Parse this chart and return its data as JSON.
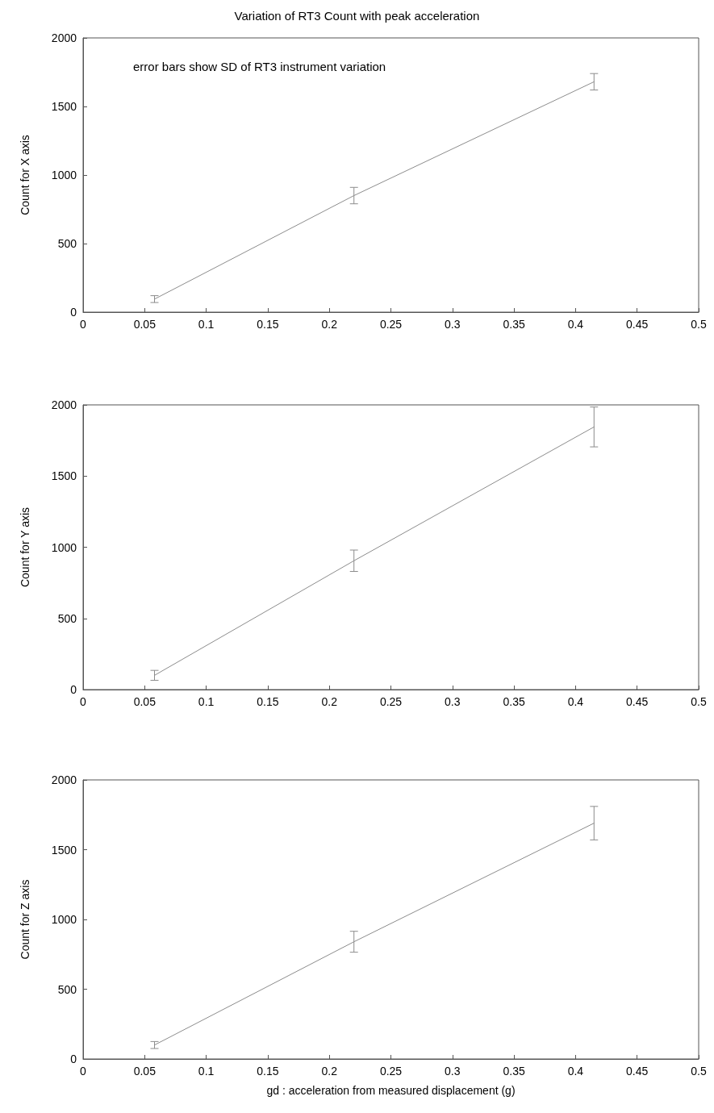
{
  "chart_data": [
    {
      "type": "line",
      "title": "Variation of RT3 Count with peak acceleration",
      "ylabel": "Count for X axis",
      "annotations": [
        "error bars show SD of RT3 instrument variation"
      ],
      "x": [
        0.058,
        0.22,
        0.415
      ],
      "values": [
        95,
        850,
        1680
      ],
      "errors": [
        25,
        60,
        60
      ],
      "color": "#8c8c8c",
      "xlim": [
        0,
        0.5
      ],
      "ylim": [
        0,
        2000
      ],
      "xticks": [
        0,
        0.05,
        0.1,
        0.15,
        0.2,
        0.25,
        0.3,
        0.35,
        0.4,
        0.45,
        0.5
      ],
      "yticks": [
        0,
        500,
        1000,
        1500,
        2000
      ],
      "grid": false,
      "marker": "none"
    },
    {
      "type": "line",
      "ylabel": "Count for Y axis",
      "x": [
        0.058,
        0.22,
        0.415
      ],
      "values": [
        100,
        905,
        1845
      ],
      "errors": [
        35,
        75,
        140
      ],
      "color": "#8c8c8c",
      "xlim": [
        0,
        0.5
      ],
      "ylim": [
        0,
        2000
      ],
      "xticks": [
        0,
        0.05,
        0.1,
        0.15,
        0.2,
        0.25,
        0.3,
        0.35,
        0.4,
        0.45,
        0.5
      ],
      "yticks": [
        0,
        500,
        1000,
        1500,
        2000
      ],
      "grid": false,
      "marker": "none"
    },
    {
      "type": "line",
      "xlabel": "gd : acceleration from measured displacement (g)",
      "ylabel": "Count for Z axis",
      "x": [
        0.058,
        0.22,
        0.415
      ],
      "values": [
        100,
        840,
        1690
      ],
      "errors": [
        25,
        75,
        120
      ],
      "color": "#8c8c8c",
      "xlim": [
        0,
        0.5
      ],
      "ylim": [
        0,
        2000
      ],
      "xticks": [
        0,
        0.05,
        0.1,
        0.15,
        0.2,
        0.25,
        0.3,
        0.35,
        0.4,
        0.45,
        0.5
      ],
      "yticks": [
        0,
        500,
        1000,
        1500,
        2000
      ],
      "grid": false,
      "marker": "none"
    }
  ]
}
